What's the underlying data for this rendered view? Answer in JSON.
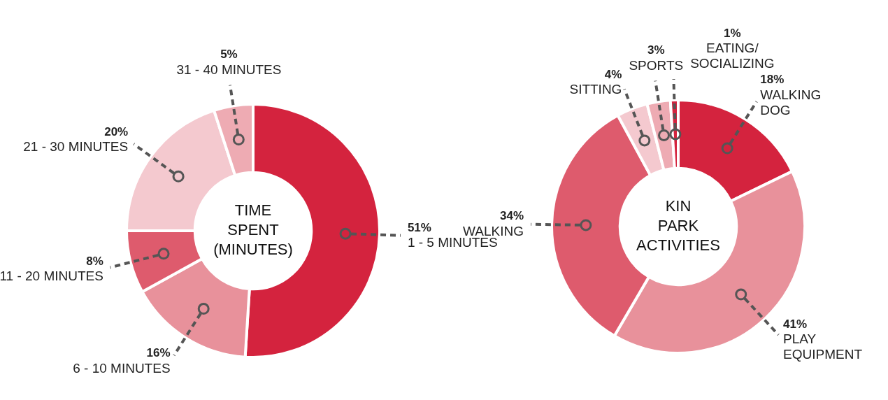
{
  "chart_data": [
    {
      "type": "donut",
      "title": "TIME SPENT (MINUTES)",
      "categories": [
        "1 - 5 MINUTES",
        "6 - 10 MINUTES",
        "11 - 20 MINUTES",
        "21 - 30 MINUTES",
        "31 - 40 MINUTES"
      ],
      "values": [
        51,
        16,
        8,
        20,
        5
      ],
      "value_labels": [
        "51%",
        "16%",
        "8%",
        "20%",
        "5%"
      ],
      "colors": [
        "#d4233e",
        "#e8919b",
        "#de5b6d",
        "#f4c9cf",
        "#eeabb3"
      ],
      "legend": false
    },
    {
      "type": "donut",
      "title": "KIN PARK ACTIVITIES",
      "categories": [
        "WALKING DOG",
        "PLAY EQUIPMENT",
        "WALKING",
        "SITTING",
        "SPORTS",
        "EATING/SOCIALIZING"
      ],
      "values": [
        18,
        41,
        34,
        4,
        3,
        1
      ],
      "value_labels": [
        "18%",
        "41%",
        "34%",
        "4%",
        "3%",
        "1%"
      ],
      "colors": [
        "#d4233e",
        "#e8919b",
        "#de5b6d",
        "#f4c9cf",
        "#eeabb3",
        "#d4233e"
      ],
      "legend": false
    }
  ]
}
